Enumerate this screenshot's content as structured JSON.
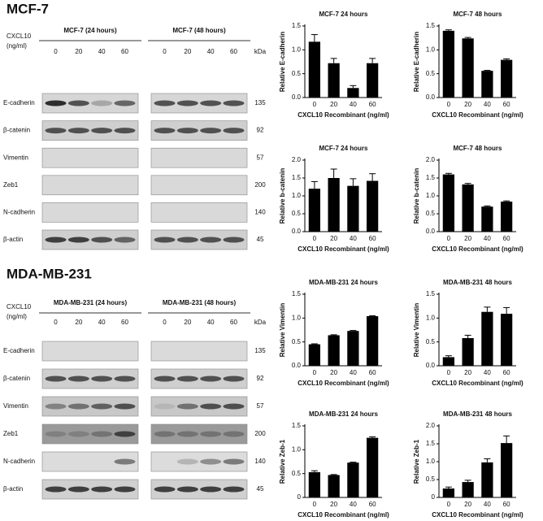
{
  "sections": [
    {
      "title": "MCF-7",
      "blots": [
        "MCF-7 (24 hours)",
        "MCF-7 (48 hours)"
      ],
      "treatment_label": [
        "CXCL10",
        "(ng/ml)"
      ],
      "doses": [
        "0",
        "20",
        "40",
        "60"
      ],
      "kda_label": "kDa",
      "proteins": [
        {
          "name": "E-cadherin",
          "kda": 135
        },
        {
          "name": "β-catenin",
          "kda": 92
        },
        {
          "name": "Vimentin",
          "kda": 57
        },
        {
          "name": "Zeb1",
          "kda": 200
        },
        {
          "name": "N-cadherin",
          "kda": 140
        },
        {
          "name": "β-actin",
          "kda": 45
        }
      ]
    },
    {
      "title": "MDA-MB-231",
      "blots": [
        "MDA-MB-231 (24 hours)",
        "MDA-MB-231 (48 hours)"
      ],
      "treatment_label": [
        "CXCL10",
        "(ng/ml)"
      ],
      "doses": [
        "0",
        "20",
        "40",
        "60"
      ],
      "kda_label": "kDa",
      "proteins": [
        {
          "name": "E-cadherin",
          "kda": 135
        },
        {
          "name": "β-catenin",
          "kda": 92
        },
        {
          "name": "Vimentin",
          "kda": 57
        },
        {
          "name": "Zeb1",
          "kda": 200
        },
        {
          "name": "N-cadherin",
          "kda": 140
        },
        {
          "name": "β-actin",
          "kda": 45
        }
      ]
    }
  ],
  "chart_data": [
    {
      "type": "bar",
      "title": "MCF-7 24 hours",
      "y_label": "Relative E-cadherin",
      "x_label": "CXCL10 Recombinant (ng/ml)",
      "categories": [
        "0",
        "20",
        "40",
        "60"
      ],
      "values": [
        1.17,
        0.72,
        0.2,
        0.72
      ],
      "errors": [
        0.15,
        0.1,
        0.05,
        0.1
      ],
      "color": "#000000",
      "ylim": [
        0,
        1.5
      ],
      "yticks": [
        {
          "value": 0,
          "label": "0.0"
        },
        {
          "value": 0.5,
          "label": "0.5"
        },
        {
          "value": 1,
          "label": "1.0"
        },
        {
          "value": 1.5,
          "label": "1.5"
        }
      ]
    },
    {
      "type": "bar",
      "title": "MCF-7 48 hours",
      "y_label": "Relative E-cadherin",
      "x_label": "CXCL10 Recombinant (ng/ml)",
      "categories": [
        "0",
        "20",
        "40",
        "60"
      ],
      "values": [
        1.4,
        1.24,
        0.56,
        0.79
      ],
      "errors": [
        0.02,
        0.02,
        0.01,
        0.02
      ],
      "color": "#000000",
      "ylim": [
        0,
        1.5
      ],
      "yticks": [
        {
          "value": 0,
          "label": "0.0"
        },
        {
          "value": 0.5,
          "label": "0.5"
        },
        {
          "value": 1,
          "label": "1.0"
        },
        {
          "value": 1.5,
          "label": "1.5"
        }
      ]
    },
    {
      "type": "bar",
      "title": "MCF-7 24 hours",
      "y_label": "Relative b-catenin",
      "x_label": "CXCL10 Recombinant (ng/ml)",
      "categories": [
        "0",
        "20",
        "40",
        "60"
      ],
      "values": [
        1.2,
        1.5,
        1.28,
        1.42
      ],
      "errors": [
        0.2,
        0.25,
        0.2,
        0.2
      ],
      "color": "#000000",
      "ylim": [
        0,
        2
      ],
      "yticks": [
        {
          "value": 0,
          "label": "0.0"
        },
        {
          "value": 0.5,
          "label": "0.5"
        },
        {
          "value": 1,
          "label": "1.0"
        },
        {
          "value": 1.5,
          "label": "1.5"
        },
        {
          "value": 2,
          "label": "2.0"
        }
      ]
    },
    {
      "type": "bar",
      "title": "MCF-7 48 hours",
      "y_label": "Relative b-catenin",
      "x_label": "CXCL10 Recombinant (ng/ml)",
      "categories": [
        "0",
        "20",
        "40",
        "60"
      ],
      "values": [
        1.6,
        1.32,
        0.7,
        0.84
      ],
      "errors": [
        0.03,
        0.03,
        0.02,
        0.02
      ],
      "color": "#000000",
      "ylim": [
        0,
        2
      ],
      "yticks": [
        {
          "value": 0,
          "label": "0.0"
        },
        {
          "value": 0.5,
          "label": "0.5"
        },
        {
          "value": 1,
          "label": "1.0"
        },
        {
          "value": 1.5,
          "label": "1.5"
        },
        {
          "value": 2,
          "label": "2.0"
        }
      ]
    },
    {
      "type": "bar",
      "title": "MDA-MB-231 24 hours",
      "y_label": "Relative Vimentin",
      "x_label": "CXCL10 Recombinant (ng/ml)",
      "categories": [
        "0",
        "20",
        "40",
        "60"
      ],
      "values": [
        0.45,
        0.64,
        0.73,
        1.04
      ],
      "errors": [
        0.01,
        0.01,
        0.01,
        0.01
      ],
      "color": "#000000",
      "ylim": [
        0,
        1.5
      ],
      "yticks": [
        {
          "value": 0,
          "label": "0.0"
        },
        {
          "value": 0.5,
          "label": "0.5"
        },
        {
          "value": 1,
          "label": "1.0"
        },
        {
          "value": 1.5,
          "label": "1.5"
        }
      ]
    },
    {
      "type": "bar",
      "title": "MDA-MB-231 48 hours",
      "y_label": "Relative Vimentin",
      "x_label": "CXCL10 Recombinant (ng/ml)",
      "categories": [
        "0",
        "20",
        "40",
        "60"
      ],
      "values": [
        0.18,
        0.58,
        1.13,
        1.09
      ],
      "errors": [
        0.03,
        0.06,
        0.1,
        0.13
      ],
      "color": "#000000",
      "ylim": [
        0,
        1.5
      ],
      "yticks": [
        {
          "value": 0,
          "label": "0.0"
        },
        {
          "value": 0.5,
          "label": "0.5"
        },
        {
          "value": 1,
          "label": "1.0"
        },
        {
          "value": 1.5,
          "label": "1.5"
        }
      ]
    },
    {
      "type": "bar",
      "title": "MDA-MB-231 24 hours",
      "y_label": "Relative Zeb-1",
      "x_label": "CXCL10 Recombinant (ng/ml)",
      "categories": [
        "0",
        "20",
        "40",
        "60"
      ],
      "values": [
        0.53,
        0.47,
        0.73,
        1.25
      ],
      "errors": [
        0.03,
        0.01,
        0.01,
        0.02
      ],
      "color": "#000000",
      "ylim": [
        0,
        1.5
      ],
      "yticks": [
        0,
        0.5,
        {
          "value": 1,
          "label": "1.0"
        },
        1.5
      ]
    },
    {
      "type": "bar",
      "title": "MDA-MB-231 48 hours",
      "y_label": "Relative Zeb-1",
      "x_label": "CXCL10 Recombinant (ng/ml)",
      "categories": [
        "0",
        "20",
        "40",
        "60"
      ],
      "values": [
        0.25,
        0.43,
        0.98,
        1.52
      ],
      "errors": [
        0.04,
        0.05,
        0.1,
        0.2
      ],
      "color": "#000000",
      "ylim": [
        0,
        2
      ],
      "yticks": [
        0,
        0.5,
        {
          "value": 1,
          "label": "1.0"
        },
        1.5,
        {
          "value": 2,
          "label": "2.0"
        }
      ]
    }
  ]
}
